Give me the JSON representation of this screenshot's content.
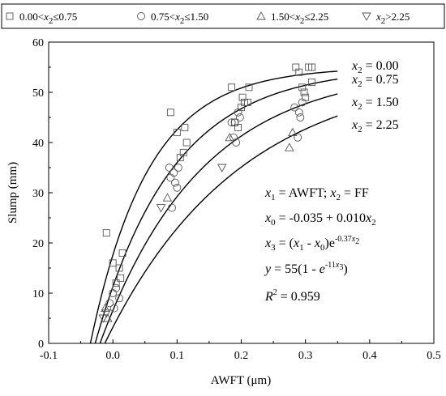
{
  "chart_data": {
    "type": "scatter",
    "xlabel": "AWFT (μm)",
    "ylabel": "Slump (mm)",
    "xlim": [
      -0.1,
      0.5
    ],
    "ylim": [
      0,
      60
    ],
    "xticks": [
      "-0.1",
      "0.0",
      "0.1",
      "0.2",
      "0.3",
      "0.4",
      "0.5"
    ],
    "yticks": [
      "0",
      "10",
      "20",
      "30",
      "40",
      "50",
      "60"
    ],
    "grid": false,
    "legend_position": "top",
    "legend": [
      {
        "marker": "square",
        "prefix": "0.00<",
        "var": "x",
        "sub": "2",
        "suffix": "≤0.75"
      },
      {
        "marker": "circle",
        "prefix": "0.75<",
        "var": "x",
        "sub": "2",
        "suffix": "≤1.50"
      },
      {
        "marker": "triangle-up",
        "prefix": "1.50<",
        "var": "x",
        "sub": "2",
        "suffix": "≤2.25"
      },
      {
        "marker": "triangle-down",
        "prefix": "",
        "var": "x",
        "sub": "2",
        "suffix": ">2.25"
      }
    ],
    "series": [
      {
        "name": "0.00<x2≤0.75",
        "marker": "square",
        "points": [
          [
            -0.01,
            22
          ],
          [
            0.0,
            16
          ],
          [
            0.005,
            12
          ],
          [
            0.01,
            15
          ],
          [
            0.012,
            13
          ],
          [
            0.015,
            18
          ],
          [
            0.09,
            46
          ],
          [
            0.1,
            42
          ],
          [
            0.105,
            37
          ],
          [
            0.11,
            38
          ],
          [
            0.112,
            43
          ],
          [
            0.115,
            40
          ],
          [
            0.185,
            51
          ],
          [
            0.19,
            44
          ],
          [
            0.195,
            43
          ],
          [
            0.2,
            47
          ],
          [
            0.202,
            49
          ],
          [
            0.205,
            48
          ],
          [
            0.21,
            48
          ],
          [
            0.212,
            51
          ],
          [
            0.285,
            55
          ],
          [
            0.29,
            54
          ],
          [
            0.295,
            51
          ],
          [
            0.298,
            50
          ],
          [
            0.3,
            49
          ],
          [
            0.305,
            55
          ],
          [
            0.31,
            52
          ],
          [
            0.31,
            55
          ]
        ]
      },
      {
        "name": "0.75<x2≤1.50",
        "marker": "circle",
        "points": [
          [
            -0.005,
            8
          ],
          [
            0.0,
            10
          ],
          [
            0.002,
            7
          ],
          [
            0.005,
            11
          ],
          [
            0.01,
            9
          ],
          [
            0.088,
            35
          ],
          [
            0.09,
            33
          ],
          [
            0.092,
            27
          ],
          [
            0.095,
            34
          ],
          [
            0.097,
            32
          ],
          [
            0.1,
            31
          ],
          [
            0.102,
            35
          ],
          [
            0.185,
            44
          ],
          [
            0.188,
            41
          ],
          [
            0.19,
            44
          ],
          [
            0.192,
            40
          ],
          [
            0.195,
            46
          ],
          [
            0.198,
            45
          ],
          [
            0.283,
            47
          ],
          [
            0.288,
            41
          ],
          [
            0.29,
            46
          ],
          [
            0.292,
            45
          ],
          [
            0.295,
            48
          ]
        ]
      },
      {
        "name": "1.50<x2≤2.25",
        "marker": "triangle-up",
        "points": [
          [
            -0.012,
            7
          ],
          [
            -0.008,
            5
          ],
          [
            0.085,
            29
          ],
          [
            0.182,
            41
          ],
          [
            0.275,
            39
          ],
          [
            0.28,
            42
          ]
        ]
      },
      {
        "name": "x2>2.25",
        "marker": "triangle-down",
        "points": [
          [
            -0.015,
            5
          ],
          [
            -0.01,
            6
          ],
          [
            0.075,
            27
          ],
          [
            0.17,
            35
          ]
        ]
      }
    ],
    "fit_curves": [
      {
        "x2": 0.0,
        "label": "x2 = 0.00"
      },
      {
        "x2": 0.75,
        "label": "x2 = 0.75"
      },
      {
        "x2": 1.5,
        "label": "x2 = 1.50"
      },
      {
        "x2": 2.25,
        "label": "x2 = 2.25"
      }
    ],
    "fit_x_range": [
      -0.04,
      0.35
    ],
    "curve_labels": [
      {
        "var": "x",
        "sub": "2",
        "rest": " = 0.00"
      },
      {
        "var": "x",
        "sub": "2",
        "rest": " = 0.75"
      },
      {
        "var": "x",
        "sub": "2",
        "rest": " = 1.50"
      },
      {
        "var": "x",
        "sub": "2",
        "rest": " = 2.25"
      }
    ],
    "annotations": {
      "line1": {
        "a": "x",
        "a_sub": "1",
        "mid": " = AWFT; ",
        "b": "x",
        "b_sub": "2",
        "end": " = FF"
      },
      "line2": {
        "a": "x",
        "a_sub": "0",
        "mid": " = -0.035 + 0.010",
        "b": "x",
        "b_sub": "2"
      },
      "line3": {
        "a": "x",
        "a_sub": "3",
        "mid": " = (",
        "b": "x",
        "b_sub": "1",
        "c": " - ",
        "d": "x",
        "d_sub": "0",
        "e": ")e",
        "sup": "-0.37",
        "sup_var": "x",
        "sup_sub": "2"
      },
      "line4": {
        "a": "y",
        "mid": " = 55(1 - ",
        "e": "e",
        "sup": "-11",
        "sup_var": "x",
        "sup_sub": "3",
        "end": ")"
      },
      "line5": {
        "a": "R",
        "sup": "2",
        "end": " = 0.959"
      }
    }
  }
}
